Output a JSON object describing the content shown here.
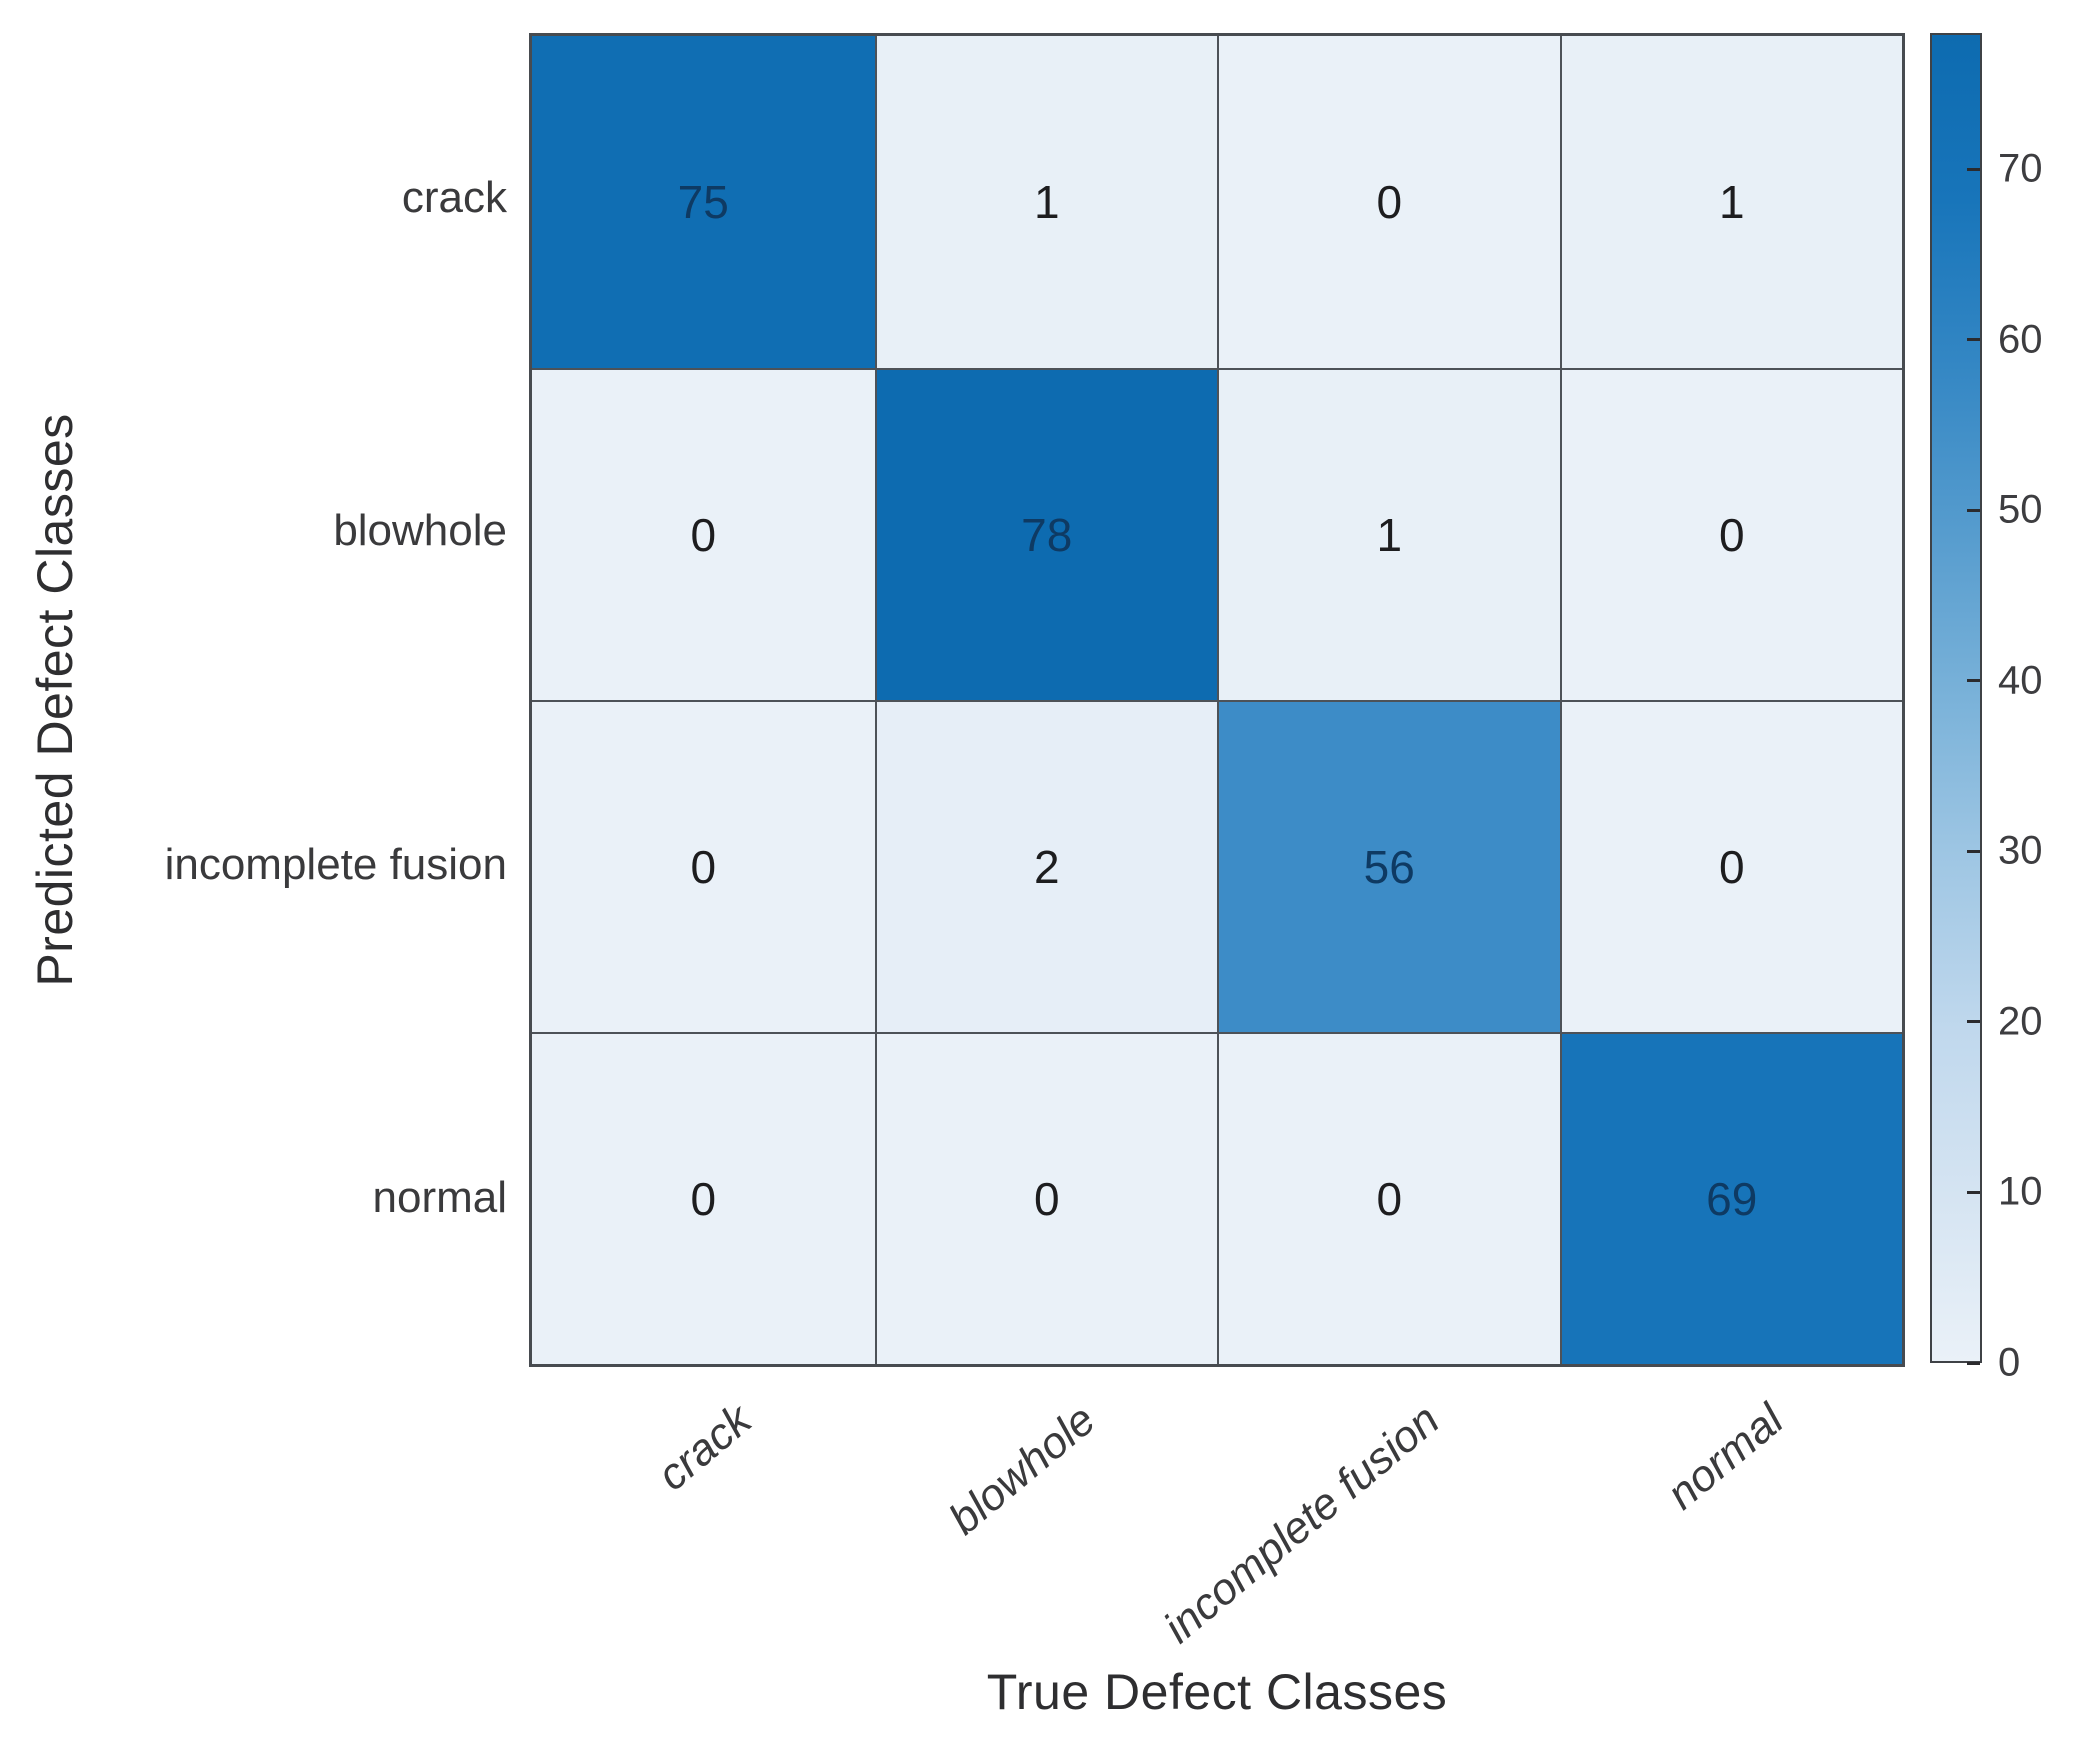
{
  "chart_data": {
    "type": "heatmap",
    "title": "",
    "xlabel": "True Defect Classes",
    "ylabel": "Predicted Defect Classes",
    "x_categories": [
      "crack",
      "blowhole",
      "incomplete fusion",
      "normal"
    ],
    "y_categories": [
      "crack",
      "blowhole",
      "incomplete fusion",
      "normal"
    ],
    "matrix": [
      [
        75,
        1,
        0,
        1
      ],
      [
        0,
        78,
        1,
        0
      ],
      [
        0,
        2,
        56,
        0
      ],
      [
        0,
        0,
        0,
        69
      ]
    ],
    "colorbar": {
      "min": 0,
      "max": 78,
      "ticks": [
        0,
        10,
        20,
        30,
        40,
        50,
        60,
        70
      ],
      "position": "right"
    },
    "grid": true,
    "legend_position": "none",
    "colormap_stops": [
      [
        0.0,
        "#eaf1f8"
      ],
      [
        0.125,
        "#d5e4f2"
      ],
      [
        0.25,
        "#c0d8ed"
      ],
      [
        0.375,
        "#a0c7e4"
      ],
      [
        0.5,
        "#7ab2d9"
      ],
      [
        0.625,
        "#569cce"
      ],
      [
        0.75,
        "#3487c4"
      ],
      [
        0.875,
        "#1875ba"
      ],
      [
        1.0,
        "#0d6bb0"
      ]
    ],
    "colors": {
      "grid_line": "#4d5258",
      "outer_border": "#474b50",
      "value_text_dark_cell": "#0e3a63",
      "value_text_light_cell": "#1d1d1f",
      "axis_text": "#3a3a3c",
      "title_text": "#2e2e30",
      "background": "#ffffff"
    }
  }
}
